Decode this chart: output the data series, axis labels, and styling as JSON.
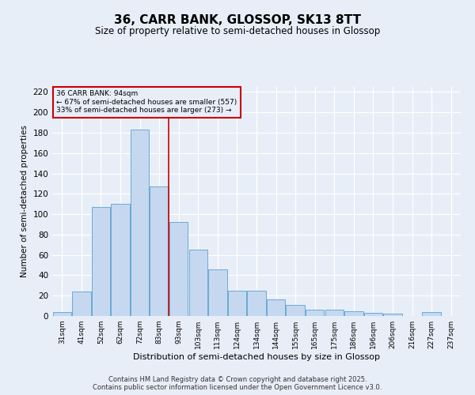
{
  "title": "36, CARR BANK, GLOSSOP, SK13 8TT",
  "subtitle": "Size of property relative to semi-detached houses in Glossop",
  "xlabel": "Distribution of semi-detached houses by size in Glossop",
  "ylabel": "Number of semi-detached properties",
  "categories": [
    "31sqm",
    "41sqm",
    "52sqm",
    "62sqm",
    "72sqm",
    "83sqm",
    "93sqm",
    "103sqm",
    "113sqm",
    "124sqm",
    "134sqm",
    "144sqm",
    "155sqm",
    "165sqm",
    "175sqm",
    "186sqm",
    "196sqm",
    "206sqm",
    "216sqm",
    "227sqm",
    "237sqm"
  ],
  "values": [
    4,
    24,
    107,
    110,
    183,
    127,
    92,
    65,
    46,
    25,
    25,
    16,
    11,
    6,
    6,
    5,
    3,
    2,
    0,
    4,
    0
  ],
  "bar_color": "#c5d8f0",
  "bar_edge_color": "#6aaad4",
  "ylim": [
    0,
    225
  ],
  "yticks": [
    0,
    20,
    40,
    60,
    80,
    100,
    120,
    140,
    160,
    180,
    200,
    220
  ],
  "annotation_text_line1": "36 CARR BANK: 94sqm",
  "annotation_text_line2": "← 67% of semi-detached houses are smaller (557)",
  "annotation_text_line3": "33% of semi-detached houses are larger (273) →",
  "footer_line1": "Contains HM Land Registry data © Crown copyright and database right 2025.",
  "footer_line2": "Contains public sector information licensed under the Open Government Licence v3.0.",
  "bg_color": "#e8eef8",
  "grid_color": "#ffffff",
  "box_edge_color": "#cc0000",
  "vline_color": "#cc0000",
  "vline_x": 5.5
}
